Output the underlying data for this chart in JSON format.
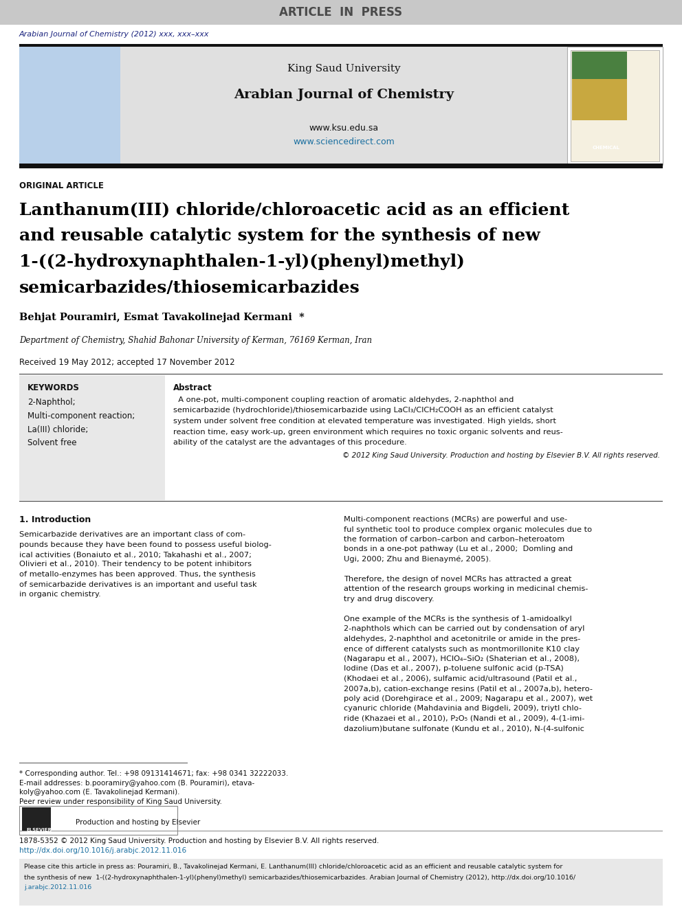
{
  "page_bg": "#ffffff",
  "top_banner_color": "#c8c8c8",
  "top_banner_text": "ARTICLE  IN  PRESS",
  "top_banner_text_color": "#4a4a4a",
  "journal_ref_text": "Arabian Journal of Chemistry (2012) xxx, xxx–xxx",
  "journal_ref_color": "#1a237e",
  "header_bg": "#e0e0e0",
  "header_uni_text": "King Saud University",
  "header_journal_text": "Arabian Journal of Chemistry",
  "header_url1": "www.ksu.edu.sa",
  "header_url2": "www.sciencedirect.com",
  "header_url_color": "#1a6fa0",
  "section_label": "ORIGINAL ARTICLE",
  "title_line1": "Lanthanum(III) chloride/chloroacetic acid as an efficient",
  "title_line2": "and reusable catalytic system for the synthesis of new",
  "title_line3": "1-((2-hydroxynaphthalen-1-yl)(phenyl)methyl)",
  "title_line4": "semicarbazides/thiosemicarbazides",
  "title_color": "#000000",
  "authors": "Behjat Pouramiri, Esmat Tavakolinejad Kermani",
  "affiliation": "Department of Chemistry, Shahid Bahonar University of Kerman, 76169 Kerman, Iran",
  "received": "Received 19 May 2012; accepted 17 November 2012",
  "keywords_title": "KEYWORDS",
  "keywords": [
    "2-Naphthol;",
    "Multi-component reaction;",
    "La(III) chloride;",
    "Solvent free"
  ],
  "keywords_bg": "#e8e8e8",
  "abstract_label": "Abstract",
  "copyright_text": "© 2012 King Saud University. Production and hosting by Elsevier B.V. All rights reserved.",
  "intro_title": "1. Introduction",
  "footnote_star": "* Corresponding author. Tel.: +98 09131414671; fax: +98 0341 32222033.",
  "footnote_email1": "E-mail addresses: b.pooramiry@yahoo.com (B. Pouramiri), etava-",
  "footnote_email2": "koly@yahoo.com (E. Tavakolinejad Kermani).",
  "footnote_peer": "Peer review under responsibility of King Saud University.",
  "footer_issn": "1878-5352 © 2012 King Saud University. Production and hosting by Elsevier B.V. All rights reserved.",
  "footer_doi": "http://dx.doi.org/10.1016/j.arabjc.2012.11.016",
  "cite_line1": "Please cite this article in press as: Pouramiri, B., Tavakolinejad Kermani, E. Lanthanum(III) chloride/chloroacetic acid as an efficient and reusable catalytic system for",
  "cite_line2": "the synthesis of new  1-((2-hydroxynaphthalen-1-yl)(phenyl)methyl) semicarbazides/thiosemicarbazides. Arabian Journal of Chemistry (2012), http://dx.doi.org/10.1016/",
  "cite_line3": "j.arabjc.2012.11.016",
  "link_color": "#1a6fa0"
}
